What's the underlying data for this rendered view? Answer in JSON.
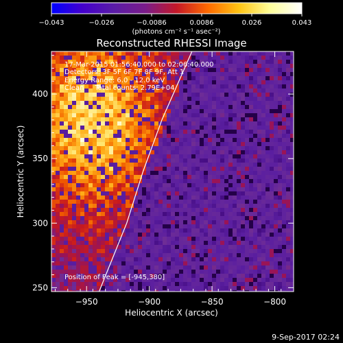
{
  "chart_data": {
    "type": "heatmap",
    "title": "Reconstructed RHESSI Image",
    "xlabel": "Heliocentric X (arcsec)",
    "ylabel": "Heliocentric Y (arcsec)",
    "xlim": [
      -978,
      -785
    ],
    "ylim": [
      247,
      433
    ],
    "x_ticks": [
      -950,
      -900,
      -850,
      -800
    ],
    "x_tick_labels": [
      "−950",
      "−900",
      "−850",
      "−800"
    ],
    "y_ticks": [
      250,
      300,
      350,
      400
    ],
    "y_tick_labels": [
      "250",
      "300",
      "350",
      "400"
    ],
    "colorbar": {
      "range": [
        -0.043,
        0.043
      ],
      "tick_labels": [
        "−0.043",
        "−0.026",
        "−0.0086",
        "0.0086",
        "0.026",
        "0.043"
      ],
      "label": "(photons cm⁻² s⁻¹ asec⁻²)",
      "colors": [
        "#0000ff",
        "#4400cc",
        "#5a1ca6",
        "#7a1c8a",
        "#c41828",
        "#ff6a00",
        "#ffc414",
        "#ffff9c",
        "#ffffff"
      ]
    },
    "annotations": [
      "17-Mar-2015 01:56:40.000 to 02:06:40.000",
      "Detectors: 3F 5F 6F 7F 8F 9F, Att 1",
      "Energy Range: 6.0 - 12.0 keV",
      "Clean     Total counts: 2.79E+04"
    ],
    "peak_label": "Position of Peak = [-945,380]",
    "peak_position": [
      -945,
      380
    ],
    "limb_curve": [
      [
        -940,
        247
      ],
      [
        -918,
        300
      ],
      [
        -905,
        340
      ],
      [
        -890,
        380
      ],
      [
        -866,
        433
      ]
    ],
    "background_color": "#5a22a0",
    "bright_region_color": "#ff8a10"
  },
  "footer": {
    "timestamp": "9-Sep-2017 02:24"
  }
}
